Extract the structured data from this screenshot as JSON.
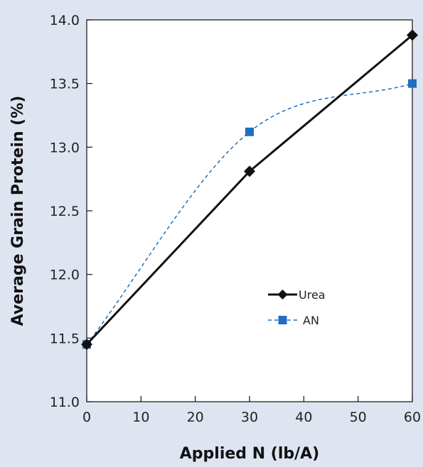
{
  "chart_data": {
    "type": "line",
    "title": "",
    "xlabel": "Applied N (lb/A)",
    "ylabel": "Average Grain Protein (%)",
    "xlim": [
      0,
      60
    ],
    "ylim": [
      11.0,
      14.0
    ],
    "xticks": [
      0,
      10,
      20,
      30,
      40,
      50,
      60
    ],
    "yticks": [
      11.0,
      11.5,
      12.0,
      12.5,
      13.0,
      13.5,
      14.0
    ],
    "x_tick_labels": [
      "0",
      "10",
      "20",
      "30",
      "40",
      "50",
      "60"
    ],
    "y_tick_labels": [
      "11.0",
      "11.5",
      "12.0",
      "12.5",
      "13.0",
      "13.5",
      "14.0"
    ],
    "grid": false,
    "legend_position": "center-right",
    "series": [
      {
        "name": "Urea",
        "x": [
          0,
          30,
          60
        ],
        "values": [
          11.45,
          12.81,
          13.88
        ],
        "color": "#111111",
        "line": "solid",
        "marker": "diamond"
      },
      {
        "name": "AN",
        "x": [
          0,
          30,
          60
        ],
        "values": [
          11.45,
          13.12,
          13.5
        ],
        "color": "#1f6fbf",
        "line": "dashed-smooth",
        "marker": "square"
      }
    ]
  }
}
